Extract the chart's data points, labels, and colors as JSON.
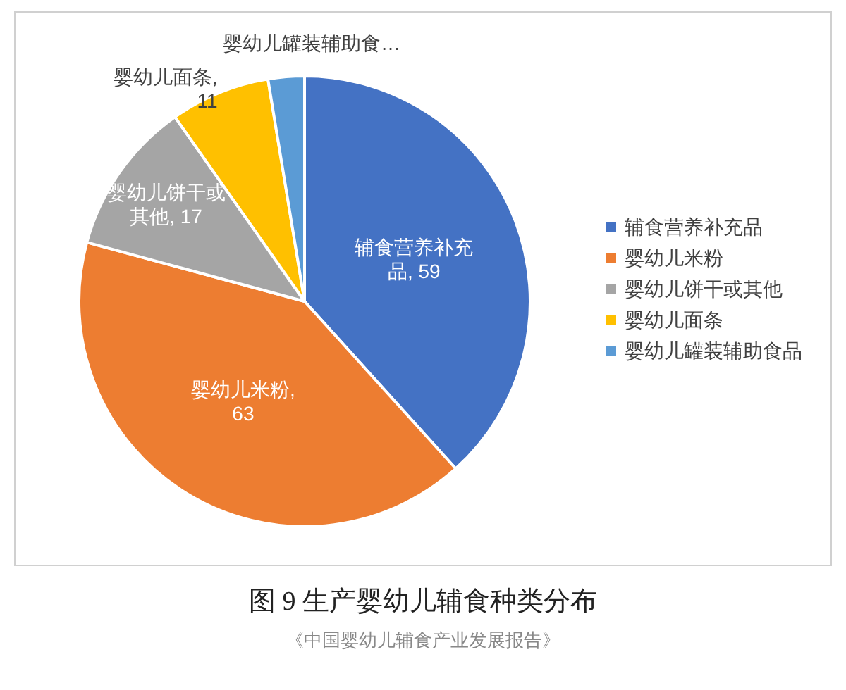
{
  "chart_data": {
    "type": "pie",
    "title": "图 9 生产婴幼儿辅食种类分布",
    "categories": [
      "辅食营养补充品",
      "婴幼儿米粉",
      "婴幼儿饼干或其他",
      "婴幼儿面条",
      "婴幼儿罐装辅助食品"
    ],
    "values": [
      59,
      63,
      17,
      11,
      4
    ],
    "colors": [
      "#4472c4",
      "#ed7d31",
      "#a5a5a5",
      "#ffc000",
      "#5b9bd5"
    ],
    "value_labels": [
      "辅食营养补充品, 59",
      "婴幼儿米粉, 63",
      "婴幼儿饼干或其他, 17",
      "婴幼儿面条, 11",
      "婴幼儿罐装辅助食…"
    ],
    "legend": "right",
    "annotations": [
      "《中国婴幼儿辅食产业发展报告》"
    ]
  }
}
